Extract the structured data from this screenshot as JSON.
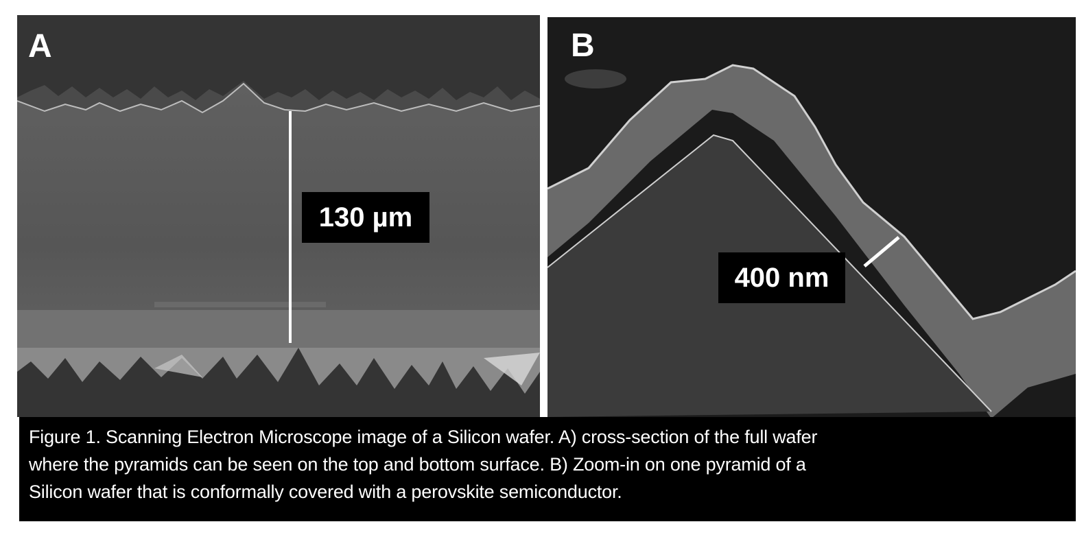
{
  "figure": {
    "panel_a": {
      "letter": "A",
      "scale_label": "130 µm"
    },
    "panel_b": {
      "letter": "B",
      "scale_label": "400 nm"
    },
    "caption_lines": [
      "Figure 1. Scanning Electron Microscope image of a Silicon wafer. A) cross-section of the full wafer",
      "where the pyramids can be seen on the top and bottom surface. B) Zoom-in on one pyramid of a",
      "Silicon wafer that is conformally covered with a perovskite semiconductor."
    ]
  }
}
